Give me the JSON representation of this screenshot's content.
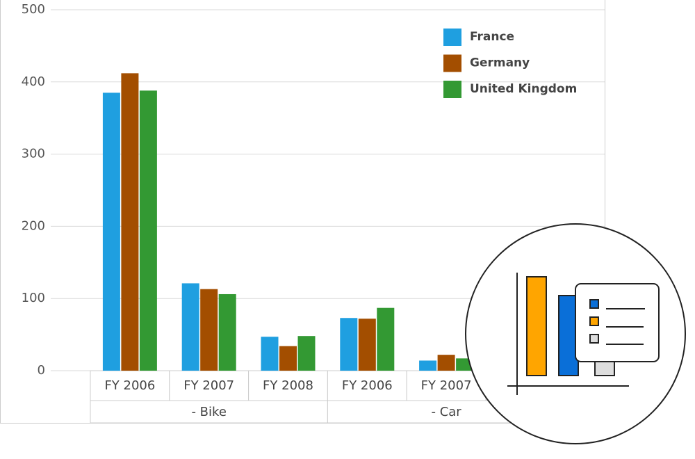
{
  "chart_data": {
    "type": "bar",
    "categories": [
      "FY 2006",
      "FY 2007",
      "FY 2008",
      "FY 2006",
      "FY 2007",
      null
    ],
    "x_groups": [
      "- Bike",
      "- Bike",
      "- Bike",
      "- Car",
      "- Car",
      "- Car"
    ],
    "series": [
      {
        "name": "France",
        "color": "#1f9fe0",
        "values": [
          385,
          121,
          47,
          73,
          14,
          null
        ]
      },
      {
        "name": "Germany",
        "color": "#a34e00",
        "values": [
          412,
          113,
          34,
          72,
          22,
          null
        ]
      },
      {
        "name": "United Kingdom",
        "color": "#339933",
        "values": [
          388,
          106,
          48,
          87,
          17,
          null
        ]
      }
    ],
    "ylim": [
      0,
      500
    ],
    "yticks": [
      0,
      100,
      200,
      300,
      400,
      500
    ],
    "grid": true,
    "legend": "top-right"
  }
}
